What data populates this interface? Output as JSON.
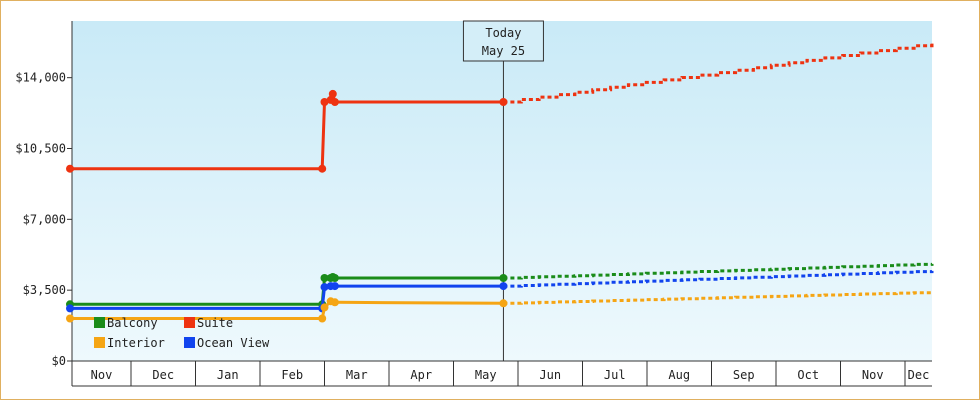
{
  "chart_data": {
    "type": "line",
    "today_marker": {
      "line1": "Today",
      "line2": "May 25"
    },
    "y_axis": {
      "ylim": [
        0,
        16800
      ],
      "ticks": [
        {
          "value": 0,
          "label": "$0"
        },
        {
          "value": 3500,
          "label": "$3,500"
        },
        {
          "value": 7000,
          "label": "$7,000"
        },
        {
          "value": 10500,
          "label": "$10,500"
        },
        {
          "value": 14000,
          "label": "$14,000"
        }
      ]
    },
    "x_axis": {
      "xlim": [
        "Nov 01",
        "Dec 31 (next year)"
      ],
      "months": [
        "Nov",
        "Dec",
        "Jan",
        "Feb",
        "Mar",
        "Apr",
        "May",
        "Jun",
        "Jul",
        "Aug",
        "Sep",
        "Oct",
        "Nov",
        "Dec"
      ]
    },
    "legend": {
      "placement": "bottom-left",
      "items": [
        {
          "name": "Balcony",
          "color": "#1a8c1a"
        },
        {
          "name": "Suite",
          "color": "#ee3311"
        },
        {
          "name": "Interior",
          "color": "#f5a514"
        },
        {
          "name": "Ocean View",
          "color": "#1144ee"
        }
      ]
    },
    "series": [
      {
        "name": "Suite",
        "color": "#ee3311",
        "history": [
          [
            "Nov 01",
            9500
          ],
          [
            "Feb 28",
            9500
          ],
          [
            "Mar 01",
            12800
          ],
          [
            "Mar 04",
            12900
          ],
          [
            "Mar 05",
            13200
          ],
          [
            "Mar 06",
            12800
          ],
          [
            "May 25",
            12800
          ]
        ],
        "markers": [
          [
            "Nov 01",
            9500
          ],
          [
            "Feb 28",
            9500
          ],
          [
            "Mar 01",
            12800
          ],
          [
            "Mar 04",
            12900
          ],
          [
            "Mar 05",
            13200
          ],
          [
            "Mar 06",
            12800
          ],
          [
            "May 25",
            12800
          ]
        ],
        "forecast": [
          [
            "May 25",
            12800
          ],
          [
            "Dec 31",
            15700
          ]
        ]
      },
      {
        "name": "Balcony",
        "color": "#1a8c1a",
        "history": [
          [
            "Nov 01",
            2800
          ],
          [
            "Feb 28",
            2800
          ],
          [
            "Mar 01",
            4100
          ],
          [
            "Mar 04",
            4100
          ],
          [
            "Mar 05",
            4150
          ],
          [
            "Mar 06",
            4100
          ],
          [
            "May 25",
            4100
          ]
        ],
        "markers": [
          [
            "Nov 01",
            2800
          ],
          [
            "Feb 28",
            2800
          ],
          [
            "Mar 01",
            4100
          ],
          [
            "Mar 04",
            4100
          ],
          [
            "Mar 05",
            4150
          ],
          [
            "Mar 06",
            4100
          ],
          [
            "May 25",
            4100
          ]
        ],
        "forecast": [
          [
            "May 25",
            4100
          ],
          [
            "Dec 31",
            4800
          ]
        ]
      },
      {
        "name": "Ocean View",
        "color": "#1144ee",
        "history": [
          [
            "Nov 01",
            2600
          ],
          [
            "Feb 28",
            2600
          ],
          [
            "Mar 01",
            3650
          ],
          [
            "Mar 04",
            3700
          ],
          [
            "Mar 06",
            3700
          ],
          [
            "May 25",
            3700
          ]
        ],
        "markers": [
          [
            "Nov 01",
            2600
          ],
          [
            "Feb 28",
            2600
          ],
          [
            "Mar 01",
            3650
          ],
          [
            "Mar 04",
            3700
          ],
          [
            "Mar 06",
            3700
          ],
          [
            "May 25",
            3700
          ]
        ],
        "forecast": [
          [
            "May 25",
            3700
          ],
          [
            "Dec 31",
            4450
          ]
        ]
      },
      {
        "name": "Interior",
        "color": "#f5a514",
        "history": [
          [
            "Nov 01",
            2100
          ],
          [
            "Feb 28",
            2100
          ],
          [
            "Mar 01",
            2650
          ],
          [
            "Mar 04",
            2950
          ],
          [
            "Mar 06",
            2900
          ],
          [
            "May 25",
            2850
          ]
        ],
        "markers": [
          [
            "Nov 01",
            2100
          ],
          [
            "Feb 28",
            2100
          ],
          [
            "Mar 01",
            2650
          ],
          [
            "Mar 04",
            2950
          ],
          [
            "Mar 06",
            2900
          ],
          [
            "May 25",
            2850
          ]
        ],
        "forecast": [
          [
            "May 25",
            2850
          ],
          [
            "Dec 31",
            3400
          ]
        ]
      }
    ]
  }
}
